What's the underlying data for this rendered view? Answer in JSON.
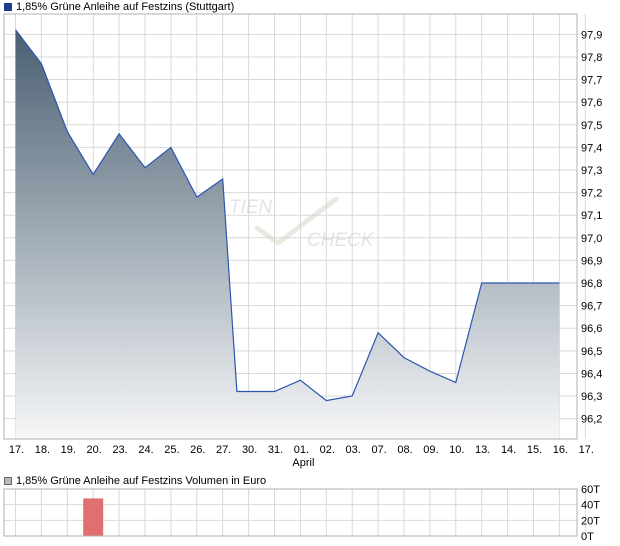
{
  "main_legend": "1,85% Grüne Anleihe  auf Festzins (Stuttgart)",
  "volume_legend": "1,85% Grüne Anleihe  auf Festzins Volumen in Euro",
  "watermark": {
    "line1": "TIEN",
    "line2": "CHECK"
  },
  "colors": {
    "line": "#2b56b0",
    "fill_top": "#4a5f72",
    "fill_bottom": "#f6f7f8",
    "volume_bar": "#e07070",
    "grid": "#d9d9d9"
  },
  "chart_data": [
    {
      "type": "area",
      "x": [
        "17.",
        "18.",
        "19.",
        "20.",
        "23.",
        "24.",
        "25.",
        "26.",
        "27.",
        "30.",
        "31.",
        "01.",
        "02.",
        "03.",
        "07.",
        "08.",
        "09.",
        "10.",
        "13.",
        "14.",
        "15.",
        "16.",
        "17."
      ],
      "x_sublabels": {
        "01.": "April"
      },
      "points": [
        {
          "x": 0,
          "y": 97.92
        },
        {
          "x": 1,
          "y": 97.77
        },
        {
          "x": 2,
          "y": 97.47
        },
        {
          "x": 3,
          "y": 97.28
        },
        {
          "x": 4,
          "y": 97.46
        },
        {
          "x": 5,
          "y": 97.31
        },
        {
          "x": 6,
          "y": 97.4
        },
        {
          "x": 7,
          "y": 97.18
        },
        {
          "x": 8,
          "y": 97.26
        },
        {
          "x": 8.55,
          "y": 96.32
        },
        {
          "x": 9,
          "y": 96.32
        },
        {
          "x": 10,
          "y": 96.32
        },
        {
          "x": 11,
          "y": 96.37
        },
        {
          "x": 12,
          "y": 96.28
        },
        {
          "x": 13,
          "y": 96.3
        },
        {
          "x": 14,
          "y": 96.58
        },
        {
          "x": 15,
          "y": 96.47
        },
        {
          "x": 16,
          "y": 96.41
        },
        {
          "x": 17,
          "y": 96.36
        },
        {
          "x": 18,
          "y": 96.8
        },
        {
          "x": 19,
          "y": 96.8
        },
        {
          "x": 20,
          "y": 96.8
        },
        {
          "x": 21,
          "y": 96.8
        }
      ],
      "yticks": [
        "96,2",
        "96,3",
        "96,4",
        "96,5",
        "96,6",
        "96,7",
        "96,8",
        "96,9",
        "97,0",
        "97,1",
        "97,2",
        "97,3",
        "97,4",
        "97,5",
        "97,6",
        "97,7",
        "97,8",
        "97,9"
      ],
      "ylim": [
        96.11,
        97.99
      ],
      "grid": true
    },
    {
      "type": "bar",
      "bars": [
        {
          "x": 3,
          "value": 48
        }
      ],
      "yticks": [
        "0T",
        "20T",
        "40T",
        "60T"
      ],
      "ylim": [
        0,
        60
      ],
      "grid": true
    }
  ]
}
